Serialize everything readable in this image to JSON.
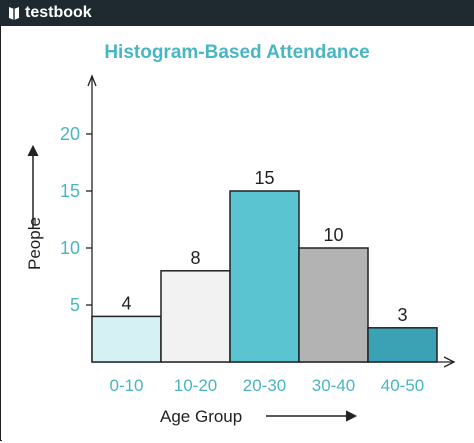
{
  "brand": {
    "name": "testbook"
  },
  "chart_data": {
    "type": "bar",
    "title": "Histogram-Based Attendance",
    "xlabel": "Age Group",
    "ylabel": "People",
    "categories": [
      "0-10",
      "10-20",
      "20-30",
      "30-40",
      "40-50"
    ],
    "values": [
      4,
      8,
      15,
      10,
      3
    ],
    "yticks": [
      5,
      10,
      15,
      20
    ],
    "ylim": [
      0,
      20
    ],
    "grid": false,
    "bar_colors": [
      "#d6f1f4",
      "#f2f2f2",
      "#5ac4d1",
      "#b3b3b3",
      "#3aa2b4"
    ],
    "accent_color": "#49b6c3"
  }
}
